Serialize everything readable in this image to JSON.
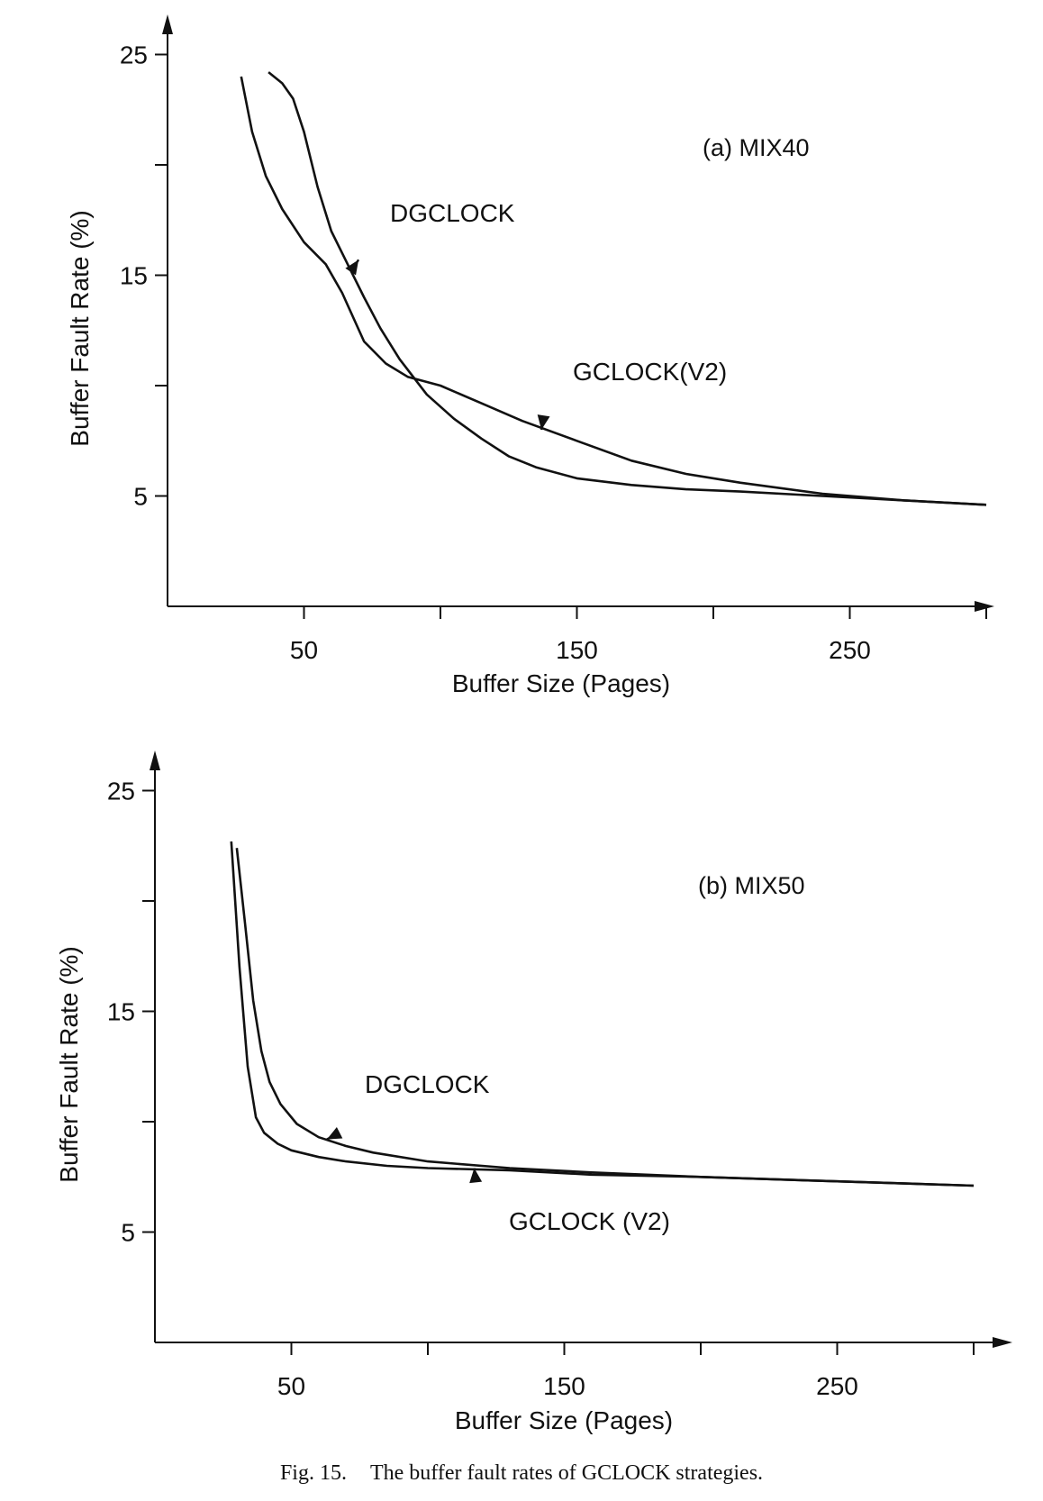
{
  "caption": {
    "number": "Fig. 15.",
    "text": "The buffer fault rates of GCLOCK strategies."
  },
  "chart_data": [
    {
      "type": "line",
      "title": "(a) MIX40",
      "xlabel": "Buffer Size (Pages)",
      "ylabel": "Buffer Fault Rate (%)",
      "xlim": [
        0,
        300
      ],
      "ylim": [
        0,
        25
      ],
      "xticks": [
        0,
        50,
        100,
        150,
        200,
        250,
        300
      ],
      "xtick_labels": [
        "50",
        "150",
        "250"
      ],
      "yticks": [
        5,
        10,
        15,
        20,
        25
      ],
      "ytick_labels": [
        "5",
        "15",
        "25"
      ],
      "grid": false,
      "series": [
        {
          "name": "DGCLOCK",
          "x": [
            37,
            42,
            46,
            50,
            55,
            60,
            66,
            72,
            78,
            85,
            95,
            105,
            115,
            125,
            135,
            150,
            170,
            190,
            210,
            240,
            270,
            300
          ],
          "y": [
            24.2,
            23.7,
            23.0,
            21.5,
            19.0,
            17.0,
            15.5,
            14.0,
            12.6,
            11.2,
            9.6,
            8.5,
            7.6,
            6.8,
            6.3,
            5.8,
            5.5,
            5.3,
            5.2,
            5.0,
            4.8,
            4.6
          ]
        },
        {
          "name": "GCLOCK(V2)",
          "x": [
            27,
            31,
            36,
            42,
            50,
            58,
            64,
            72,
            80,
            88,
            100,
            115,
            130,
            150,
            170,
            190,
            210,
            240,
            270,
            300
          ],
          "y": [
            24.0,
            21.5,
            19.5,
            18.0,
            16.5,
            15.5,
            14.2,
            12.0,
            11.0,
            10.4,
            10.0,
            9.2,
            8.4,
            7.5,
            6.6,
            6.0,
            5.6,
            5.1,
            4.8,
            4.6
          ]
        }
      ],
      "annotations": [
        {
          "text": "DGCLOCK",
          "series": "DGCLOCK",
          "x": 70,
          "y": 15.7
        },
        {
          "text": "GCLOCK(V2)",
          "series": "GCLOCK(V2)",
          "x": 137,
          "y": 8.0
        }
      ]
    },
    {
      "type": "line",
      "title": "(b) MIX50",
      "xlabel": "Buffer Size (Pages)",
      "ylabel": "Buffer Fault Rate (%)",
      "xlim": [
        0,
        300
      ],
      "ylim": [
        0,
        25
      ],
      "xticks": [
        0,
        50,
        100,
        150,
        200,
        250,
        300
      ],
      "xtick_labels": [
        "50",
        "150",
        "250"
      ],
      "yticks": [
        5,
        10,
        15,
        20,
        25
      ],
      "ytick_labels": [
        "5",
        "15",
        "25"
      ],
      "grid": false,
      "series": [
        {
          "name": "DGCLOCK",
          "x": [
            30,
            33,
            36,
            39,
            42,
            46,
            52,
            60,
            70,
            80,
            100,
            130,
            160,
            200,
            250,
            300
          ],
          "y": [
            22.4,
            19.0,
            15.5,
            13.2,
            11.8,
            10.8,
            9.9,
            9.3,
            8.9,
            8.6,
            8.2,
            7.9,
            7.7,
            7.5,
            7.3,
            7.1
          ]
        },
        {
          "name": "GCLOCK (V2)",
          "x": [
            28,
            31,
            34,
            37,
            40,
            45,
            50,
            60,
            70,
            85,
            100,
            130,
            160,
            200,
            250,
            300
          ],
          "y": [
            22.7,
            17.0,
            12.5,
            10.2,
            9.5,
            9.0,
            8.7,
            8.4,
            8.2,
            8.0,
            7.9,
            7.8,
            7.6,
            7.5,
            7.3,
            7.1
          ]
        }
      ],
      "annotations": [
        {
          "text": "DGCLOCK",
          "series": "DGCLOCK",
          "x": 63,
          "y": 9.2
        },
        {
          "text": "GCLOCK (V2)",
          "series": "GCLOCK (V2)",
          "x": 117,
          "y": 7.9
        }
      ]
    }
  ]
}
